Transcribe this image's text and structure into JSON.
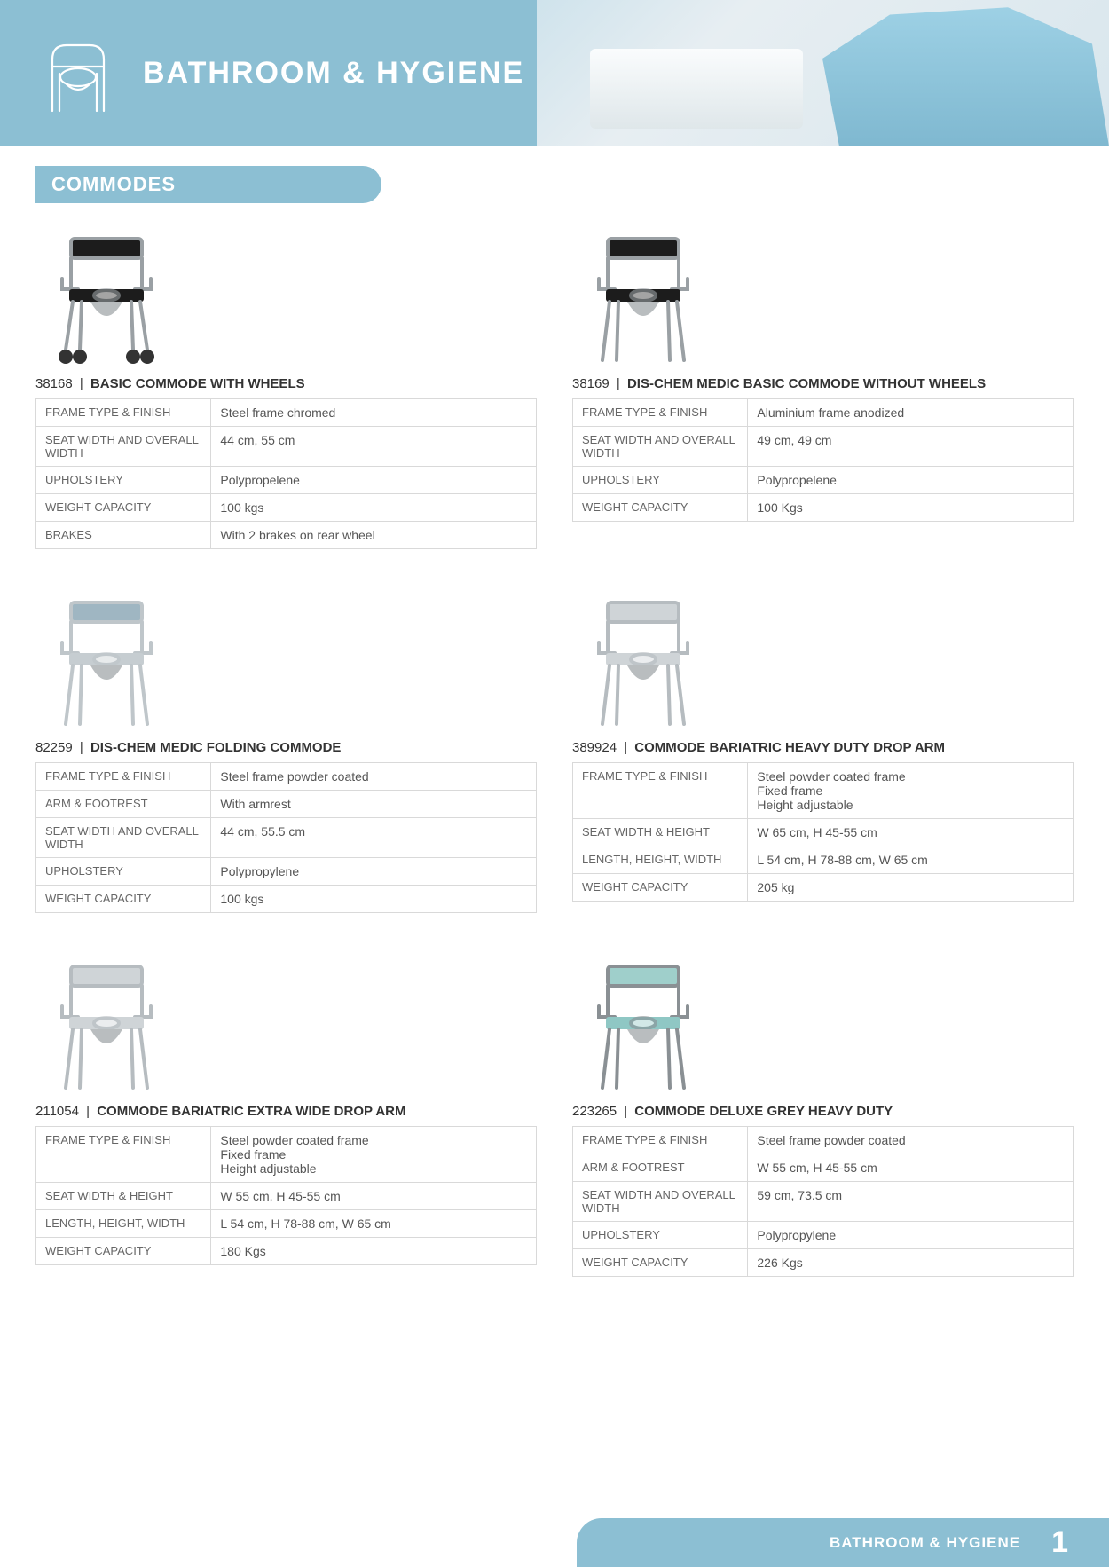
{
  "colors": {
    "brand": "#8cbfd3",
    "text": "#444444",
    "border": "#d9d9d9",
    "white": "#ffffff"
  },
  "header": {
    "title": "BATHROOM & HYGIENE",
    "icon_name": "walker-icon"
  },
  "section_label": "COMMODES",
  "footer": {
    "label": "BATHROOM & HYGIENE",
    "page_number": "1"
  },
  "products": [
    {
      "sku": "38168",
      "name": "BASIC COMMODE WITH WHEELS",
      "thumb_kind": "wheeled-black",
      "specs": [
        [
          "FRAME TYPE & FINISH",
          "Steel frame chromed"
        ],
        [
          "SEAT WIDTH AND OVERALL WIDTH",
          "44 cm, 55 cm"
        ],
        [
          "UPHOLSTERY",
          "Polypropelene"
        ],
        [
          "WEIGHT CAPACITY",
          "100 kgs"
        ],
        [
          "BRAKES",
          "With 2 brakes on rear wheel"
        ]
      ]
    },
    {
      "sku": "38169",
      "name": "DIS-CHEM MEDIC BASIC COMMODE WITHOUT WHEELS",
      "thumb_kind": "static-black",
      "specs": [
        [
          "FRAME TYPE & FINISH",
          "Aluminium frame anodized"
        ],
        [
          "SEAT WIDTH AND OVERALL WIDTH",
          "49 cm, 49 cm"
        ],
        [
          "UPHOLSTERY",
          "Polypropelene"
        ],
        [
          "WEIGHT CAPACITY",
          "100 Kgs"
        ]
      ]
    },
    {
      "sku": "82259",
      "name": "DIS-CHEM MEDIC FOLDING COMMODE",
      "thumb_kind": "folding-grey",
      "specs": [
        [
          "FRAME TYPE & FINISH",
          "Steel frame powder coated"
        ],
        [
          "ARM & FOOTREST",
          "With armrest"
        ],
        [
          "SEAT WIDTH AND OVERALL WIDTH",
          "44 cm, 55.5 cm"
        ],
        [
          "UPHOLSTERY",
          "Polypropylene"
        ],
        [
          "WEIGHT CAPACITY",
          "100 kgs"
        ]
      ]
    },
    {
      "sku": "389924",
      "name": "COMMODE BARIATRIC HEAVY DUTY DROP ARM",
      "thumb_kind": "bariatric-grey",
      "specs": [
        [
          "FRAME TYPE & FINISH",
          "Steel powder coated frame\nFixed frame\nHeight adjustable"
        ],
        [
          "SEAT WIDTH & HEIGHT",
          "W 65 cm, H 45-55 cm"
        ],
        [
          "LENGTH, HEIGHT, WIDTH",
          "L 54 cm, H 78-88 cm, W 65 cm"
        ],
        [
          "WEIGHT CAPACITY",
          "205 kg"
        ]
      ]
    },
    {
      "sku": "211054",
      "name": "COMMODE BARIATRIC EXTRA WIDE DROP ARM",
      "thumb_kind": "bariatric-grey",
      "specs": [
        [
          "FRAME TYPE & FINISH",
          "Steel powder coated frame\nFixed frame\nHeight adjustable"
        ],
        [
          "SEAT WIDTH & HEIGHT",
          "W 55 cm, H 45-55 cm"
        ],
        [
          "LENGTH, HEIGHT, WIDTH",
          "L 54 cm, H 78-88 cm, W 65 cm"
        ],
        [
          "WEIGHT CAPACITY",
          "180 Kgs"
        ]
      ]
    },
    {
      "sku": "223265",
      "name": "COMMODE DELUXE GREY HEAVY DUTY",
      "thumb_kind": "deluxe-teal",
      "specs": [
        [
          "FRAME TYPE & FINISH",
          "Steel frame powder coated"
        ],
        [
          "ARM & FOOTREST",
          "W 55 cm, H 45-55 cm"
        ],
        [
          "SEAT WIDTH AND OVERALL WIDTH",
          "59 cm, 73.5 cm"
        ],
        [
          "UPHOLSTERY",
          "Polypropylene"
        ],
        [
          "WEIGHT CAPACITY",
          "226 Kgs"
        ]
      ]
    }
  ]
}
